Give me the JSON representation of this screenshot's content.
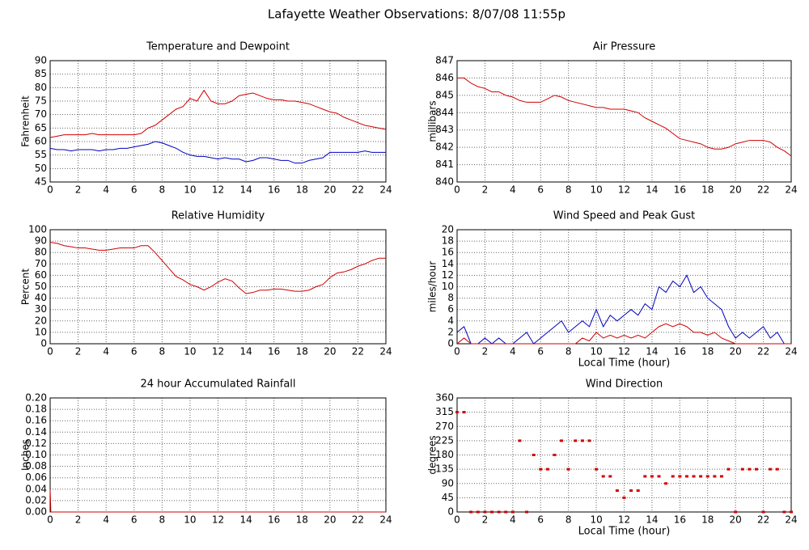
{
  "title": "Lafayette Weather Observations: 8/07/08 11:55p",
  "chart_data": [
    {
      "type": "line",
      "title": "Temperature and Dewpoint",
      "ylabel": "Fahrenheit",
      "xlim": [
        0,
        24
      ],
      "xticks": [
        0,
        2,
        4,
        6,
        8,
        10,
        12,
        14,
        16,
        18,
        20,
        22,
        24
      ],
      "ylim": [
        45,
        90
      ],
      "yticks": [
        45,
        50,
        55,
        60,
        65,
        70,
        75,
        80,
        85,
        90
      ],
      "grid": true,
      "x": [
        0,
        0.5,
        1,
        1.5,
        2,
        2.5,
        3,
        3.5,
        4,
        4.5,
        5,
        5.5,
        6,
        6.5,
        7,
        7.5,
        8,
        8.5,
        9,
        9.5,
        10,
        10.5,
        11,
        11.5,
        12,
        12.5,
        13,
        13.5,
        14,
        14.5,
        15,
        15.5,
        16,
        16.5,
        17,
        17.5,
        18,
        18.5,
        19,
        19.5,
        20,
        20.5,
        21,
        21.5,
        22,
        22.5,
        23,
        23.5,
        24
      ],
      "series": [
        {
          "color": "#d00000",
          "values": [
            61.5,
            62,
            62.5,
            62.5,
            62.5,
            62.5,
            63,
            62.5,
            62.5,
            62.5,
            62.5,
            62.5,
            62.5,
            63,
            65,
            66,
            68,
            70,
            72,
            73,
            76,
            75,
            79,
            75,
            74,
            74,
            75,
            77,
            77.5,
            78,
            77,
            76,
            75.5,
            75.5,
            75,
            75,
            74.5,
            74,
            73,
            72,
            71,
            70.5,
            69,
            68,
            67,
            66,
            65.5,
            65,
            64.5
          ]
        },
        {
          "color": "#0000c0",
          "values": [
            57.5,
            57,
            57,
            56.5,
            57,
            57,
            57,
            56.5,
            57,
            57,
            57.5,
            57.5,
            58,
            58.5,
            59,
            60,
            59.5,
            58.5,
            57.5,
            56,
            55,
            54.5,
            54.5,
            54,
            53.5,
            54,
            53.5,
            53.5,
            52.5,
            53,
            54,
            54,
            53.5,
            53,
            53,
            52,
            52,
            53,
            53.5,
            54,
            56,
            56,
            56,
            56,
            56,
            56.5,
            56,
            56,
            56
          ]
        }
      ]
    },
    {
      "type": "line",
      "title": "Air Pressure",
      "ylabel": "millibars",
      "xlim": [
        0,
        24
      ],
      "xticks": [
        0,
        2,
        4,
        6,
        8,
        10,
        12,
        14,
        16,
        18,
        20,
        22,
        24
      ],
      "ylim": [
        840,
        847
      ],
      "yticks": [
        840,
        841,
        842,
        843,
        844,
        845,
        846,
        847
      ],
      "grid": true,
      "x": [
        0,
        0.5,
        1,
        1.5,
        2,
        2.5,
        3,
        3.5,
        4,
        4.5,
        5,
        5.5,
        6,
        6.5,
        7,
        7.5,
        8,
        8.5,
        9,
        9.5,
        10,
        10.5,
        11,
        11.5,
        12,
        12.5,
        13,
        13.5,
        14,
        14.5,
        15,
        15.5,
        16,
        16.5,
        17,
        17.5,
        18,
        18.5,
        19,
        19.5,
        20,
        20.5,
        21,
        21.5,
        22,
        22.5,
        23,
        23.5,
        24
      ],
      "series": [
        {
          "color": "#d00000",
          "values": [
            846.0,
            846.0,
            845.7,
            845.5,
            845.4,
            845.2,
            845.2,
            845.0,
            844.9,
            844.7,
            844.6,
            844.6,
            844.6,
            844.8,
            845.0,
            844.9,
            844.7,
            844.6,
            844.5,
            844.4,
            844.3,
            844.3,
            844.2,
            844.2,
            844.2,
            844.1,
            844.0,
            843.7,
            843.5,
            843.3,
            843.1,
            842.8,
            842.5,
            842.4,
            842.3,
            842.2,
            842.0,
            841.9,
            841.9,
            842.0,
            842.2,
            842.3,
            842.4,
            842.4,
            842.4,
            842.3,
            842.0,
            841.8,
            841.5
          ]
        }
      ]
    },
    {
      "type": "line",
      "title": "Relative Humidity",
      "ylabel": "Percent",
      "xlim": [
        0,
        24
      ],
      "xticks": [
        0,
        2,
        4,
        6,
        8,
        10,
        12,
        14,
        16,
        18,
        20,
        22,
        24
      ],
      "ylim": [
        0,
        100
      ],
      "yticks": [
        0,
        10,
        20,
        30,
        40,
        50,
        60,
        70,
        80,
        90,
        100
      ],
      "grid": true,
      "x": [
        0,
        0.5,
        1,
        1.5,
        2,
        2.5,
        3,
        3.5,
        4,
        4.5,
        5,
        5.5,
        6,
        6.5,
        7,
        7.5,
        8,
        8.5,
        9,
        9.5,
        10,
        10.5,
        11,
        11.5,
        12,
        12.5,
        13,
        13.5,
        14,
        14.5,
        15,
        15.5,
        16,
        16.5,
        17,
        17.5,
        18,
        18.5,
        19,
        19.5,
        20,
        20.5,
        21,
        21.5,
        22,
        22.5,
        23,
        23.5,
        24
      ],
      "series": [
        {
          "color": "#d00000",
          "values": [
            89,
            88,
            86,
            85,
            84,
            84,
            83,
            82,
            82,
            83,
            84,
            84,
            84,
            86,
            86,
            80,
            73,
            66,
            59,
            56,
            52,
            50,
            47,
            50,
            54,
            57,
            55,
            49,
            44,
            45,
            47,
            47,
            48,
            48,
            47,
            46,
            46,
            47,
            50,
            52,
            58,
            62,
            63,
            65,
            68,
            70,
            73,
            75,
            75
          ]
        }
      ]
    },
    {
      "type": "line",
      "title": "Wind Speed and Peak Gust",
      "ylabel": "miles/hour",
      "xlabel": "Local Time (hour)",
      "xlim": [
        0,
        24
      ],
      "xticks": [
        0,
        2,
        4,
        6,
        8,
        10,
        12,
        14,
        16,
        18,
        20,
        22,
        24
      ],
      "ylim": [
        0,
        20
      ],
      "yticks": [
        0,
        2,
        4,
        6,
        8,
        10,
        12,
        14,
        16,
        18,
        20
      ],
      "grid": true,
      "x": [
        0,
        0.5,
        1,
        1.5,
        2,
        2.5,
        3,
        3.5,
        4,
        4.5,
        5,
        5.5,
        6,
        6.5,
        7,
        7.5,
        8,
        8.5,
        9,
        9.5,
        10,
        10.5,
        11,
        11.5,
        12,
        12.5,
        13,
        13.5,
        14,
        14.5,
        15,
        15.5,
        16,
        16.5,
        17,
        17.5,
        18,
        18.5,
        19,
        19.5,
        20,
        20.5,
        21,
        21.5,
        22,
        22.5,
        23,
        23.5,
        24
      ],
      "series": [
        {
          "color": "#0000c0",
          "values": [
            2,
            3,
            0,
            0,
            1,
            0,
            1,
            0,
            0,
            1,
            2,
            0,
            1,
            2,
            3,
            4,
            2,
            3,
            4,
            3,
            6,
            3,
            5,
            4,
            5,
            6,
            5,
            7,
            6,
            10,
            9,
            11,
            10,
            12,
            9,
            10,
            8,
            7,
            6,
            3,
            1,
            2,
            1,
            2,
            3,
            1,
            2,
            0,
            0
          ]
        },
        {
          "color": "#d00000",
          "values": [
            0,
            1,
            0,
            0,
            0,
            0,
            0,
            0,
            0,
            0,
            0,
            0,
            0,
            0,
            0,
            0,
            0,
            0,
            1,
            0.5,
            2,
            1,
            1.5,
            1,
            1.5,
            1,
            1.5,
            1,
            2,
            3,
            3.5,
            3,
            3.5,
            3,
            2,
            2,
            1.5,
            2,
            1,
            0.5,
            0,
            0,
            0,
            0,
            0,
            0,
            0,
            0,
            0
          ]
        }
      ]
    },
    {
      "type": "line",
      "title": "24 hour Accumulated Rainfall",
      "ylabel": "Inches",
      "xlim": [
        0,
        24
      ],
      "xticks": [
        0,
        2,
        4,
        6,
        8,
        10,
        12,
        14,
        16,
        18,
        20,
        22,
        24
      ],
      "ylim": [
        0,
        0.2
      ],
      "yticks": [
        {
          "value": 0,
          "label": "0.00"
        },
        {
          "value": 0.02,
          "label": "0.02"
        },
        {
          "value": 0.04,
          "label": "0.04"
        },
        {
          "value": 0.06,
          "label": "0.06"
        },
        {
          "value": 0.08,
          "label": "0.08"
        },
        {
          "value": 0.1,
          "label": "0.10"
        },
        {
          "value": 0.12,
          "label": "0.12"
        },
        {
          "value": 0.14,
          "label": "0.14"
        },
        {
          "value": 0.16,
          "label": "0.16"
        },
        {
          "value": 0.18,
          "label": "0.18"
        },
        {
          "value": 0.2,
          "label": "0.20"
        }
      ],
      "grid": true,
      "x": [
        0,
        0.05,
        24
      ],
      "series": [
        {
          "color": "#d00000",
          "values": [
            0.04,
            0,
            0
          ]
        }
      ]
    },
    {
      "type": "scatter",
      "title": "Wind Direction",
      "ylabel": "degrees",
      "xlabel": "Local Time (hour)",
      "xlim": [
        0,
        24
      ],
      "xticks": [
        0,
        2,
        4,
        6,
        8,
        10,
        12,
        14,
        16,
        18,
        20,
        22,
        24
      ],
      "ylim": [
        0,
        360
      ],
      "yticks": [
        0,
        45,
        90,
        135,
        180,
        225,
        270,
        315,
        360
      ],
      "grid": true,
      "x": [
        0,
        0.5,
        1,
        1.5,
        2,
        2.5,
        3,
        3.5,
        4,
        4.5,
        5,
        5.5,
        6,
        6.5,
        7,
        7.5,
        8,
        8.5,
        9,
        9.5,
        10,
        10.5,
        11,
        11.5,
        12,
        12.5,
        13,
        13.5,
        14,
        14.5,
        15,
        15.5,
        16,
        16.5,
        17,
        17.5,
        18,
        18.5,
        19,
        19.5,
        20,
        20.5,
        21,
        21.5,
        22,
        22.5,
        23,
        23.5,
        24
      ],
      "series": [
        {
          "color": "#d00000",
          "values": [
            315,
            315,
            0,
            0,
            0,
            0,
            0,
            0,
            0,
            225,
            0,
            180,
            135,
            135,
            180,
            225,
            135,
            225,
            225,
            225,
            135,
            112.5,
            112.5,
            67.5,
            45,
            67.5,
            67.5,
            112.5,
            112.5,
            112.5,
            90,
            112.5,
            112.5,
            112.5,
            112.5,
            112.5,
            112.5,
            112.5,
            112.5,
            135,
            0,
            135,
            135,
            135,
            0,
            135,
            135,
            0,
            0
          ]
        }
      ]
    }
  ]
}
